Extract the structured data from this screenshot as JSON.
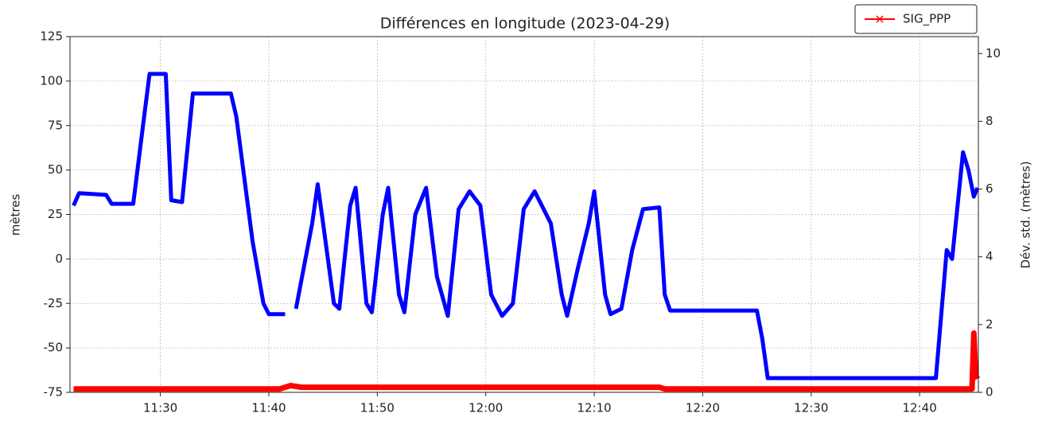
{
  "chart_data": {
    "type": "line",
    "title": "Différences en longitude (2023-04-29)",
    "y_label": "mètres",
    "y2_label": "Dév. std. (mètres)",
    "xlim": [
      "11:21:40",
      "12:45:25"
    ],
    "xticks": [
      "11:30",
      "11:40",
      "11:50",
      "12:00",
      "12:10",
      "12:20",
      "12:30",
      "12:40"
    ],
    "ylim": [
      -75,
      125
    ],
    "yticks": [
      -75,
      -50,
      -25,
      0,
      25,
      50,
      75,
      100,
      125
    ],
    "y2lim": [
      0,
      10.5
    ],
    "y2ticks": [
      0,
      2,
      4,
      6,
      8,
      10
    ],
    "grid": true,
    "legend": "upper right",
    "series": [
      {
        "color": "#0000ff",
        "x": [
          "11:22:00",
          "11:22:30",
          "11:25:00",
          "11:25:30",
          "11:27:30",
          "11:28:30",
          "11:29:00",
          "11:30:30",
          "11:31:00",
          "11:32:00",
          "11:33:00",
          "11:36:30",
          "11:37:00",
          "11:38:30",
          "11:39:30",
          "11:40:00",
          "11:41:30",
          "11:42:00",
          "11:42:30",
          "11:43:00",
          "11:44:00",
          "11:44:30",
          "11:45:00",
          "11:46:00",
          "11:46:30",
          "11:47:30",
          "11:48:00",
          "11:49:00",
          "11:49:30",
          "11:50:30",
          "11:51:00",
          "11:52:00",
          "11:52:30",
          "11:53:30",
          "11:54:30",
          "11:55:30",
          "11:56:30",
          "11:57:30",
          "11:58:30",
          "11:59:30",
          "12:00:30",
          "12:01:30",
          "12:02:30",
          "12:03:30",
          "12:04:30",
          "12:06:00",
          "12:07:00",
          "12:07:30",
          "12:08:30",
          "12:09:30",
          "12:10:00",
          "12:11:00",
          "12:11:30",
          "12:12:30",
          "12:13:30",
          "12:14:30",
          "12:16:00",
          "12:16:30",
          "12:17:00",
          "12:25:00",
          "12:25:30",
          "12:26:00",
          "12:41:30",
          "12:42:30",
          "12:43:00",
          "12:44:00",
          "12:44:30",
          "12:45:00",
          "12:45:20"
        ],
        "values": [
          30,
          37,
          36,
          31,
          31,
          80,
          104,
          104,
          33,
          32,
          93,
          93,
          80,
          10,
          -25,
          -31,
          -31,
          null,
          -28,
          -12,
          20,
          42,
          20,
          -25,
          -28,
          30,
          40,
          -25,
          -30,
          25,
          40,
          -20,
          -30,
          25,
          40,
          -10,
          -32,
          28,
          38,
          30,
          -20,
          -32,
          -25,
          28,
          38,
          20,
          -20,
          -32,
          -5,
          20,
          38,
          -20,
          -31,
          -28,
          5,
          28,
          29,
          -20,
          -29,
          -29,
          -45,
          -67,
          -67,
          5,
          0,
          60,
          50,
          35,
          40
        ]
      },
      {
        "name": "SIG_PPP",
        "color": "#ff0000",
        "axis": "y2",
        "x": [
          "11:22:00",
          "11:41:00",
          "11:42:00",
          "11:43:00",
          "12:08:00",
          "12:16:00",
          "12:16:30",
          "12:44:50",
          "12:45:00",
          "12:45:10",
          "12:45:20"
        ],
        "values": [
          0.1,
          0.1,
          0.2,
          0.15,
          0.15,
          0.15,
          0.1,
          0.1,
          1.75,
          0.5,
          0.4
        ]
      }
    ]
  }
}
